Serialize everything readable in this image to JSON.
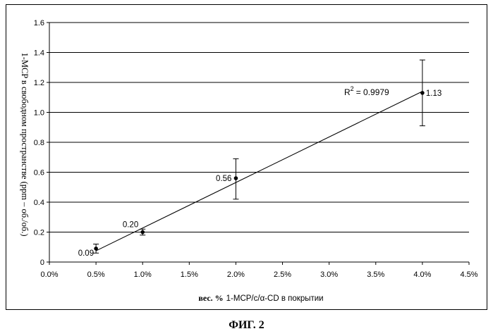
{
  "caption": "ФИГ. 2",
  "chart_data": {
    "type": "scatter",
    "x_label_prefix": "вес. %",
    "x_label_main": "1-MCP/c/α-CD в покрытии",
    "y_label": "1-MCP в свободном пространстве (ppm – об./об.)",
    "x_ticks": [
      "0.0%",
      "0.5%",
      "1.0%",
      "1.5%",
      "2.0%",
      "2.5%",
      "3.0%",
      "3.5%",
      "4.0%",
      "4.5%"
    ],
    "y_ticks": [
      "0",
      "0.2",
      "0.4",
      "0.6",
      "0.8",
      "1.0",
      "1.2",
      "1.4",
      "1.6"
    ],
    "xlim": [
      0,
      4.5
    ],
    "ylim": [
      0,
      1.6
    ],
    "grid": "horizontal",
    "points": [
      {
        "x": 0.5,
        "y": 0.09,
        "label": "0.09",
        "err_low": 0.06,
        "err_high": 0.12
      },
      {
        "x": 1.0,
        "y": 0.2,
        "label": "0.20",
        "err_low": 0.18,
        "err_high": 0.22
      },
      {
        "x": 2.0,
        "y": 0.56,
        "label": "0.56",
        "err_low": 0.42,
        "err_high": 0.69
      },
      {
        "x": 4.0,
        "y": 1.13,
        "label": "1.13",
        "err_low": 0.91,
        "err_high": 1.35
      }
    ],
    "trendline": {
      "x": [
        0.5,
        4.0
      ],
      "y": [
        0.075,
        1.14
      ]
    },
    "r2_prefix": "R",
    "r2_exp": "2",
    "r2_value": "= 0.9979"
  }
}
